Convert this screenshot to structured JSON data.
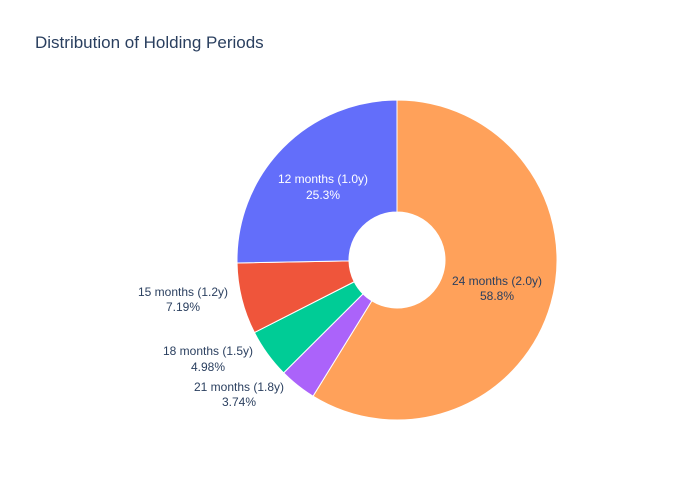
{
  "chart_data": {
    "type": "pie",
    "title": "Distribution of Holding Periods",
    "hole": true,
    "slices": [
      {
        "label": "24 months (2.0y)",
        "percent_label": "58.8%",
        "value": 58.8,
        "color": "#ffa15a",
        "label_position": "inside",
        "label_color": "#2a3f5f"
      },
      {
        "label": "21 months (1.8y)",
        "percent_label": "3.74%",
        "value": 3.74,
        "color": "#ab63fa",
        "label_position": "outside",
        "label_color": "#2a3f5f"
      },
      {
        "label": "18 months (1.5y)",
        "percent_label": "4.98%",
        "value": 4.98,
        "color": "#00cc96",
        "label_position": "outside",
        "label_color": "#2a3f5f"
      },
      {
        "label": "15 months (1.2y)",
        "percent_label": "7.19%",
        "value": 7.19,
        "color": "#ef553b",
        "label_position": "outside",
        "label_color": "#2a3f5f"
      },
      {
        "label": "12 months (1.0y)",
        "percent_label": "25.3%",
        "value": 25.3,
        "color": "#636efa",
        "label_position": "inside",
        "label_color": "#ffffff"
      }
    ]
  }
}
